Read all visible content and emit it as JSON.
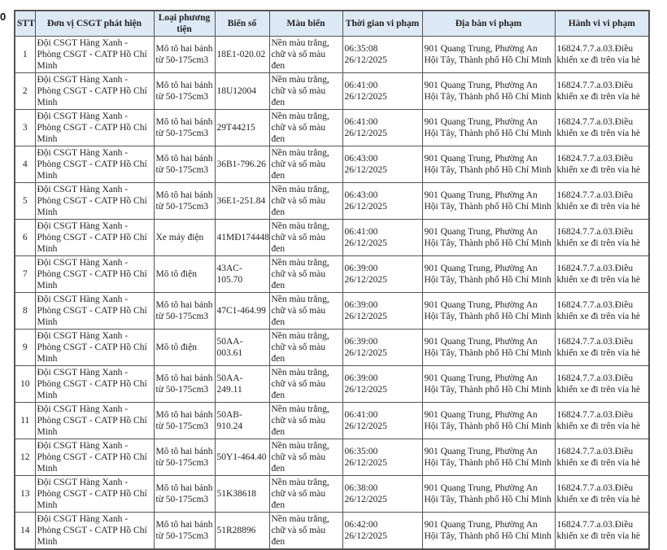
{
  "edge_char": "0",
  "headers": [
    "STT",
    "Đơn vị CSGT phát hiện",
    "Loại phương tiện",
    "Biển số",
    "Màu biển",
    "Thời gian vi phạm",
    "Địa bàn vi phạm",
    "Hành vi vi phạm"
  ],
  "rows": [
    {
      "stt": "1",
      "unit": "Đội CSGT Hàng Xanh - Phòng CSGT - CATP Hồ Chí Minh",
      "type": "Mô tô hai bánh từ 50-175cm3",
      "plate": "18E1-020.02",
      "color": "Nền màu trắng, chữ và số màu đen",
      "time": "06:35:08 26/12/2025",
      "place": "901 Quang Trung, Phường An Hội Tây, Thành phố Hồ Chí Minh",
      "act": "16824.7.7.a.03.Điều khiển xe đi trên vỉa hè"
    },
    {
      "stt": "2",
      "unit": "Đội CSGT Hàng Xanh - Phòng CSGT - CATP Hồ Chí Minh",
      "type": "Mô tô hai bánh từ 50-175cm3",
      "plate": "18U12004",
      "color": "Nền màu trắng, chữ và số màu đen",
      "time": "06:41:00 26/12/2025",
      "place": "901 Quang Trung, Phường An Hội Tây, Thành phố Hồ Chí Minh",
      "act": "16824.7.7.a.03.Điều khiển xe đi trên vỉa hè"
    },
    {
      "stt": "3",
      "unit": "Đội CSGT Hàng Xanh - Phòng CSGT - CATP Hồ Chí Minh",
      "type": "Mô tô hai bánh từ 50-175cm3",
      "plate": "29T44215",
      "color": "Nền màu trắng, chữ và số màu đen",
      "time": "06:41:00 26/12/2025",
      "place": "901 Quang Trung, Phường An Hội Tây, Thành phố Hồ Chí Minh",
      "act": "16824.7.7.a.03.Điều khiển xe đi trên vỉa hè"
    },
    {
      "stt": "4",
      "unit": "Đội CSGT Hàng Xanh - Phòng CSGT - CATP Hồ Chí Minh",
      "type": "Mô tô hai bánh từ 50-175cm3",
      "plate": "36B1-796.26",
      "color": "Nền màu trắng, chữ và số màu đen",
      "time": "06:43:00 26/12/2025",
      "place": "901 Quang Trung, Phường An Hội Tây, Thành phố Hồ Chí Minh",
      "act": "16824.7.7.a.03.Điều khiển xe đi trên vỉa hè"
    },
    {
      "stt": "5",
      "unit": "Đội CSGT Hàng Xanh - Phòng CSGT - CATP Hồ Chí Minh",
      "type": "Mô tô hai bánh từ 50-175cm3",
      "plate": "36E1-251.84",
      "color": "Nền màu trắng, chữ và số màu đen",
      "time": "06:43:00 26/12/2025",
      "place": "901 Quang Trung, Phường An Hội Tây, Thành phố Hồ Chí Minh",
      "act": "16824.7.7.a.03.Điều khiển xe đi trên vỉa hè"
    },
    {
      "stt": "6",
      "unit": "Đội CSGT Hàng Xanh - Phòng CSGT - CATP Hồ Chí Minh",
      "type": "Xe máy điện",
      "plate": "41MĐ174448",
      "color": "Nền màu trắng, chữ và số màu đen",
      "time": "06:41:00 26/12/2025",
      "place": "901 Quang Trung, Phường An Hội Tây, Thành phố Hồ Chí Minh",
      "act": "16824.7.7.a.03.Điều khiển xe đi trên vỉa hè"
    },
    {
      "stt": "7",
      "unit": "Đội CSGT Hàng Xanh - Phòng CSGT - CATP Hồ Chí Minh",
      "type": "Mô tô điện",
      "plate": "43AC-105.70",
      "color": "Nền màu trắng, chữ và số màu đen",
      "time": "06:39:00 26/12/2025",
      "place": "901 Quang Trung, Phường An Hội Tây, Thành phố Hồ Chí Minh",
      "act": "16824.7.7.a.03.Điều khiển xe đi trên vỉa hè"
    },
    {
      "stt": "8",
      "unit": "Đội CSGT Hàng Xanh - Phòng CSGT - CATP Hồ Chí Minh",
      "type": "Mô tô hai bánh từ 50-175cm3",
      "plate": "47C1-464.99",
      "color": "Nền màu trắng, chữ và số màu đen",
      "time": "06:39:00 26/12/2025",
      "place": "901 Quang Trung, Phường An Hội Tây, Thành phố Hồ Chí Minh",
      "act": "16824.7.7.a.03.Điều khiển xe đi trên vỉa hè"
    },
    {
      "stt": "9",
      "unit": "Đội CSGT Hàng Xanh - Phòng CSGT - CATP Hồ Chí Minh",
      "type": "Mô tô điện",
      "plate": "50AA-003.61",
      "color": "Nền màu trắng, chữ và số màu đen",
      "time": "06:39:00 26/12/2025",
      "place": "901 Quang Trung, Phường An Hội Tây, Thành phố Hồ Chí Minh",
      "act": "16824.7.7.a.03.Điều khiển xe đi trên vỉa hè"
    },
    {
      "stt": "10",
      "unit": "Đội CSGT Hàng Xanh - Phòng CSGT - CATP Hồ Chí Minh",
      "type": "Mô tô hai bánh từ 50-175cm3",
      "plate": "50AA-249.11",
      "color": "Nền màu trắng, chữ và số màu đen",
      "time": "06:39:00 26/12/2025",
      "place": "901 Quang Trung, Phường An Hội Tây, Thành phố Hồ Chí Minh",
      "act": "16824.7.7.a.03.Điều khiển xe đi trên vỉa hè"
    },
    {
      "stt": "11",
      "unit": "Đội CSGT Hàng Xanh - Phòng CSGT - CATP Hồ Chí Minh",
      "type": "Mô tô hai bánh từ 50-175cm3",
      "plate": "50AB-910.24",
      "color": "Nền màu trắng, chữ và số màu đen",
      "time": "06:41:00 26/12/2025",
      "place": "901 Quang Trung, Phường An Hội Tây, Thành phố Hồ Chí Minh",
      "act": "16824.7.7.a.03.Điều khiển xe đi trên vỉa hè"
    },
    {
      "stt": "12",
      "unit": "Đội CSGT Hàng Xanh - Phòng CSGT - CATP Hồ Chí Minh",
      "type": "Mô tô hai bánh từ 50-175cm3",
      "plate": "50Y1-464.40",
      "color": "Nền màu trắng, chữ và số màu đen",
      "time": "06:35:00 26/12/2025",
      "place": "901 Quang Trung, Phường An Hội Tây, Thành phố Hồ Chí Minh",
      "act": "16824.7.7.a.03.Điều khiển xe đi trên vỉa hè"
    },
    {
      "stt": "13",
      "unit": "Đội CSGT Hàng Xanh - Phòng CSGT - CATP Hồ Chí Minh",
      "type": "Mô tô hai bánh từ 50-175cm3",
      "plate": "51K38618",
      "color": "Nền màu trắng, chữ và số màu đen",
      "time": "06:38:00 26/12/2025",
      "place": "901 Quang Trung, Phường An Hội Tây, Thành phố Hồ Chí Minh",
      "act": "16824.7.7.a.03.Điều khiển xe đi trên vỉa hè"
    },
    {
      "stt": "14",
      "unit": "Đội CSGT Hàng Xanh - Phòng CSGT - CATP Hồ Chí Minh",
      "type": "Mô tô hai bánh từ 50-175cm3",
      "plate": "51R28896",
      "color": "Nền màu trắng, chữ và số màu đen",
      "time": "06:42:00 26/12/2025",
      "place": "901 Quang Trung, Phường An Hội Tây, Thành phố Hồ Chí Minh",
      "act": "16824.7.7.a.03.Điều khiển xe đi trên vỉa hè"
    }
  ],
  "colors": {
    "header_bg": "#dde9f5",
    "border": "#555555"
  }
}
